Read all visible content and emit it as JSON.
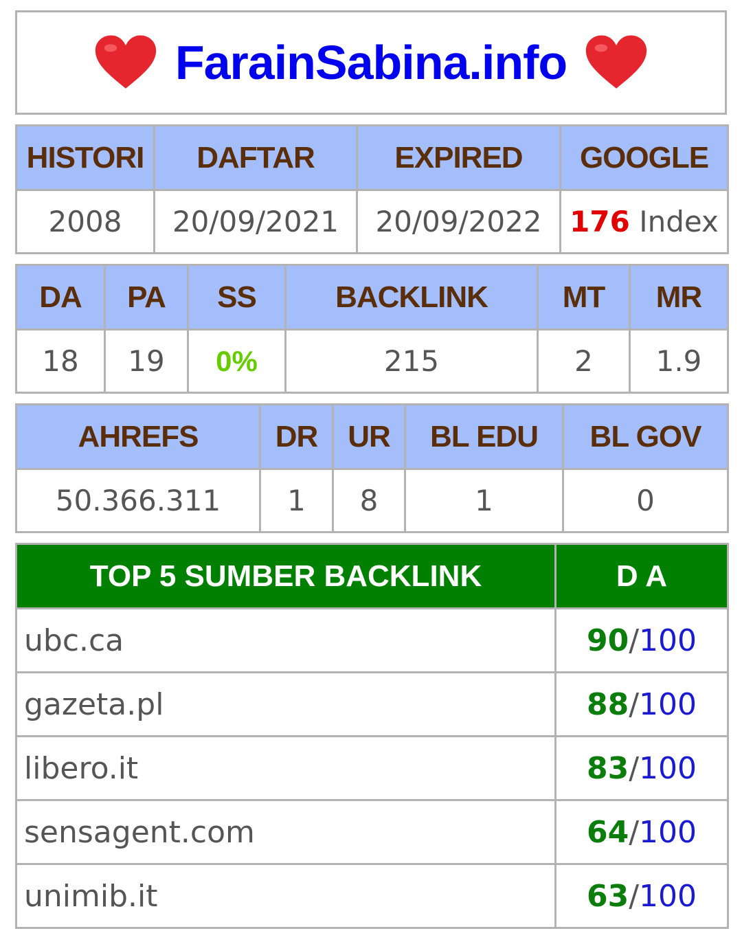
{
  "header": {
    "title": "FarainSabina.info"
  },
  "info": {
    "headers": [
      "HISTORI",
      "DAFTAR",
      "EXPIRED",
      "GOOGLE"
    ],
    "histori": "2008",
    "daftar": "20/09/2021",
    "expired": "20/09/2022",
    "google_count": "176",
    "google_suffix": " Index"
  },
  "moz": {
    "headers": [
      "DA",
      "PA",
      "SS",
      "BACKLINK",
      "MT",
      "MR"
    ],
    "da": "18",
    "pa": "19",
    "ss": "0%",
    "backlink": "215",
    "mt": "2",
    "mr": "1.9"
  },
  "ahrefs": {
    "headers": [
      "AHREFS",
      "DR",
      "UR",
      "BL EDU",
      "BL GOV"
    ],
    "ahrefs": "50.366.311",
    "dr": "1",
    "ur": "8",
    "bl_edu": "1",
    "bl_gov": "0"
  },
  "top_backlinks": {
    "header_left": "TOP 5 SUMBER BACKLINK",
    "header_right": "D A",
    "separator": "/",
    "max": "100",
    "rows": [
      {
        "site": "ubc.ca",
        "da": "90"
      },
      {
        "site": "gazeta.pl",
        "da": "88"
      },
      {
        "site": "libero.it",
        "da": "83"
      },
      {
        "site": "sensagent.com",
        "da": "64"
      },
      {
        "site": "unimib.it",
        "da": "63"
      }
    ]
  },
  "colors": {
    "title": "#0000ee",
    "header_bg": "#a4befc",
    "header_text": "#5a2e0a",
    "green_header_bg": "#008000",
    "google_count": "#e00000",
    "ss_value": "#66cc00",
    "da_value": "#0a7d0a",
    "da_max": "#1a1ad0"
  },
  "icons": [
    "heart-icon-left",
    "heart-icon-right"
  ]
}
